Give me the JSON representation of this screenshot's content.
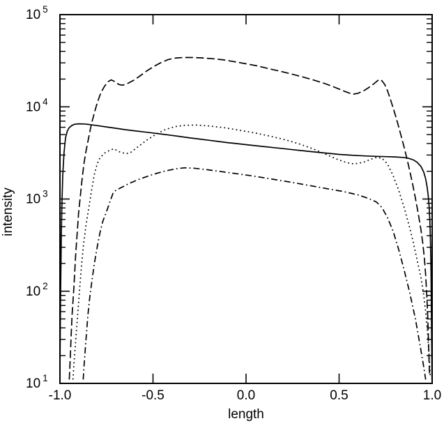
{
  "chart_data": {
    "type": "line",
    "title": "",
    "xlabel": "length",
    "ylabel": "intensity",
    "xlim": [
      -1.0,
      1.0
    ],
    "ylim": [
      10,
      100000
    ],
    "yscale": "log",
    "grid": false,
    "legend": "none",
    "background_color": "#ffffff",
    "axis_color": "#000000",
    "x_ticks": [
      {
        "value": -1.0,
        "label": "-1.0"
      },
      {
        "value": -0.5,
        "label": "-0.5"
      },
      {
        "value": 0.0,
        "label": "0.0"
      },
      {
        "value": 0.5,
        "label": "0.5"
      },
      {
        "value": 1.0,
        "label": "1.0"
      }
    ],
    "y_ticks": [
      {
        "exponent": 1,
        "label_base": "10",
        "label_exp": "1"
      },
      {
        "exponent": 2,
        "label_base": "10",
        "label_exp": "2"
      },
      {
        "exponent": 3,
        "label_base": "10",
        "label_exp": "3"
      },
      {
        "exponent": 4,
        "label_base": "10",
        "label_exp": "4"
      },
      {
        "exponent": 5,
        "label_base": "10",
        "label_exp": "5"
      }
    ],
    "y_minor_mantissas": [
      2,
      3,
      4,
      5,
      6,
      7,
      8,
      9
    ],
    "series": [
      {
        "name": "solid-line",
        "style": "solid",
        "color": "#000000",
        "points": [
          [
            -1.0,
            12
          ],
          [
            -0.998,
            40
          ],
          [
            -0.996,
            120
          ],
          [
            -0.993,
            350
          ],
          [
            -0.99,
            800
          ],
          [
            -0.985,
            1800
          ],
          [
            -0.978,
            3200
          ],
          [
            -0.97,
            4600
          ],
          [
            -0.96,
            5500
          ],
          [
            -0.95,
            5950
          ],
          [
            -0.935,
            6300
          ],
          [
            -0.92,
            6480
          ],
          [
            -0.9,
            6550
          ],
          [
            -0.87,
            6520
          ],
          [
            -0.84,
            6420
          ],
          [
            -0.8,
            6250
          ],
          [
            -0.75,
            6050
          ],
          [
            -0.7,
            5850
          ],
          [
            -0.65,
            5650
          ],
          [
            -0.6,
            5500
          ],
          [
            -0.55,
            5350
          ],
          [
            -0.5,
            5200
          ],
          [
            -0.45,
            5050
          ],
          [
            -0.4,
            4900
          ],
          [
            -0.35,
            4750
          ],
          [
            -0.3,
            4600
          ],
          [
            -0.25,
            4470
          ],
          [
            -0.2,
            4340
          ],
          [
            -0.15,
            4210
          ],
          [
            -0.1,
            4090
          ],
          [
            -0.05,
            3990
          ],
          [
            0.0,
            3890
          ],
          [
            0.05,
            3790
          ],
          [
            0.1,
            3700
          ],
          [
            0.15,
            3610
          ],
          [
            0.2,
            3520
          ],
          [
            0.25,
            3430
          ],
          [
            0.3,
            3350
          ],
          [
            0.35,
            3270
          ],
          [
            0.4,
            3190
          ],
          [
            0.45,
            3120
          ],
          [
            0.5,
            3050
          ],
          [
            0.55,
            3000
          ],
          [
            0.6,
            2960
          ],
          [
            0.65,
            2930
          ],
          [
            0.7,
            2900
          ],
          [
            0.75,
            2880
          ],
          [
            0.8,
            2860
          ],
          [
            0.84,
            2830
          ],
          [
            0.87,
            2780
          ],
          [
            0.9,
            2650
          ],
          [
            0.92,
            2500
          ],
          [
            0.94,
            2250
          ],
          [
            0.955,
            1950
          ],
          [
            0.965,
            1650
          ],
          [
            0.973,
            1350
          ],
          [
            0.979,
            1080
          ],
          [
            0.984,
            820
          ],
          [
            0.988,
            560
          ],
          [
            0.991,
            340
          ],
          [
            0.994,
            160
          ],
          [
            0.996,
            60
          ],
          [
            0.998,
            20
          ],
          [
            0.999,
            11
          ]
        ]
      },
      {
        "name": "long-dashed-line",
        "style": "dashed",
        "color": "#000000",
        "points": [
          [
            -0.95,
            11
          ],
          [
            -0.945,
            18
          ],
          [
            -0.94,
            32
          ],
          [
            -0.935,
            55
          ],
          [
            -0.925,
            110
          ],
          [
            -0.915,
            260
          ],
          [
            -0.905,
            500
          ],
          [
            -0.9,
            700
          ],
          [
            -0.89,
            1100
          ],
          [
            -0.88,
            1700
          ],
          [
            -0.87,
            2500
          ],
          [
            -0.86,
            3300
          ],
          [
            -0.85,
            4200
          ],
          [
            -0.84,
            5300
          ],
          [
            -0.83,
            6600
          ],
          [
            -0.815,
            8600
          ],
          [
            -0.8,
            11000
          ],
          [
            -0.78,
            14200
          ],
          [
            -0.76,
            16800
          ],
          [
            -0.74,
            18800
          ],
          [
            -0.725,
            19600
          ],
          [
            -0.71,
            19000
          ],
          [
            -0.695,
            18000
          ],
          [
            -0.68,
            17400
          ],
          [
            -0.665,
            17200
          ],
          [
            -0.65,
            17400
          ],
          [
            -0.63,
            18200
          ],
          [
            -0.6,
            19600
          ],
          [
            -0.565,
            22000
          ],
          [
            -0.53,
            24800
          ],
          [
            -0.49,
            27800
          ],
          [
            -0.46,
            30000
          ],
          [
            -0.42,
            32500
          ],
          [
            -0.38,
            33800
          ],
          [
            -0.34,
            34300
          ],
          [
            -0.29,
            34300
          ],
          [
            -0.24,
            34000
          ],
          [
            -0.18,
            33300
          ],
          [
            -0.12,
            32300
          ],
          [
            -0.06,
            30800
          ],
          [
            0.0,
            29300
          ],
          [
            0.06,
            27800
          ],
          [
            0.12,
            26000
          ],
          [
            0.18,
            24400
          ],
          [
            0.24,
            22800
          ],
          [
            0.3,
            21200
          ],
          [
            0.36,
            19600
          ],
          [
            0.42,
            18000
          ],
          [
            0.47,
            16500
          ],
          [
            0.52,
            15000
          ],
          [
            0.55,
            14200
          ],
          [
            0.575,
            13700
          ],
          [
            0.6,
            14000
          ],
          [
            0.63,
            14800
          ],
          [
            0.66,
            16200
          ],
          [
            0.69,
            18000
          ],
          [
            0.715,
            19800
          ],
          [
            0.73,
            19200
          ],
          [
            0.745,
            17500
          ],
          [
            0.76,
            15000
          ],
          [
            0.775,
            12200
          ],
          [
            0.79,
            9800
          ],
          [
            0.805,
            7800
          ],
          [
            0.82,
            6100
          ],
          [
            0.835,
            4700
          ],
          [
            0.85,
            3600
          ],
          [
            0.865,
            2700
          ],
          [
            0.88,
            2000
          ],
          [
            0.895,
            1450
          ],
          [
            0.91,
            1020
          ],
          [
            0.925,
            700
          ],
          [
            0.94,
            460
          ],
          [
            0.95,
            330
          ],
          [
            0.958,
            230
          ],
          [
            0.965,
            150
          ],
          [
            0.971,
            90
          ],
          [
            0.976,
            55
          ],
          [
            0.98,
            30
          ],
          [
            0.984,
            16
          ],
          [
            0.986,
            12
          ]
        ]
      },
      {
        "name": "dotted-line",
        "style": "dotted",
        "color": "#000000",
        "points": [
          [
            -0.93,
            11
          ],
          [
            -0.925,
            16
          ],
          [
            -0.915,
            30
          ],
          [
            -0.905,
            55
          ],
          [
            -0.895,
            100
          ],
          [
            -0.885,
            180
          ],
          [
            -0.875,
            300
          ],
          [
            -0.86,
            520
          ],
          [
            -0.845,
            800
          ],
          [
            -0.83,
            1250
          ],
          [
            -0.815,
            1850
          ],
          [
            -0.8,
            2400
          ],
          [
            -0.785,
            2800
          ],
          [
            -0.76,
            3150
          ],
          [
            -0.73,
            3400
          ],
          [
            -0.71,
            3500
          ],
          [
            -0.68,
            3250
          ],
          [
            -0.645,
            3100
          ],
          [
            -0.62,
            3200
          ],
          [
            -0.58,
            3700
          ],
          [
            -0.53,
            4400
          ],
          [
            -0.48,
            5100
          ],
          [
            -0.43,
            5700
          ],
          [
            -0.38,
            6100
          ],
          [
            -0.33,
            6300
          ],
          [
            -0.27,
            6350
          ],
          [
            -0.2,
            6200
          ],
          [
            -0.12,
            5950
          ],
          [
            -0.04,
            5600
          ],
          [
            0.04,
            5250
          ],
          [
            0.12,
            4850
          ],
          [
            0.2,
            4450
          ],
          [
            0.28,
            4000
          ],
          [
            0.36,
            3500
          ],
          [
            0.43,
            3050
          ],
          [
            0.49,
            2700
          ],
          [
            0.54,
            2480
          ],
          [
            0.58,
            2400
          ],
          [
            0.63,
            2500
          ],
          [
            0.67,
            2700
          ],
          [
            0.7,
            2820
          ],
          [
            0.73,
            2780
          ],
          [
            0.76,
            2400
          ],
          [
            0.79,
            1800
          ],
          [
            0.82,
            1250
          ],
          [
            0.85,
            800
          ],
          [
            0.88,
            480
          ],
          [
            0.9,
            330
          ],
          [
            0.92,
            215
          ],
          [
            0.94,
            140
          ],
          [
            0.955,
            90
          ],
          [
            0.967,
            55
          ],
          [
            0.977,
            32
          ],
          [
            0.985,
            18
          ],
          [
            0.99,
            12
          ]
        ]
      },
      {
        "name": "dash-dot-line",
        "style": "dashdot",
        "color": "#000000",
        "points": [
          [
            -0.875,
            11
          ],
          [
            -0.87,
            16
          ],
          [
            -0.86,
            30
          ],
          [
            -0.85,
            55
          ],
          [
            -0.84,
            85
          ],
          [
            -0.828,
            130
          ],
          [
            -0.815,
            200
          ],
          [
            -0.8,
            300
          ],
          [
            -0.785,
            430
          ],
          [
            -0.77,
            570
          ],
          [
            -0.75,
            730
          ],
          [
            -0.73,
            950
          ],
          [
            -0.715,
            1150
          ],
          [
            -0.7,
            1240
          ],
          [
            -0.68,
            1300
          ],
          [
            -0.63,
            1470
          ],
          [
            -0.57,
            1650
          ],
          [
            -0.5,
            1850
          ],
          [
            -0.44,
            2000
          ],
          [
            -0.38,
            2120
          ],
          [
            -0.33,
            2180
          ],
          [
            -0.28,
            2160
          ],
          [
            -0.21,
            2080
          ],
          [
            -0.13,
            1980
          ],
          [
            -0.05,
            1880
          ],
          [
            0.05,
            1760
          ],
          [
            0.15,
            1630
          ],
          [
            0.25,
            1510
          ],
          [
            0.35,
            1390
          ],
          [
            0.44,
            1290
          ],
          [
            0.52,
            1210
          ],
          [
            0.6,
            1110
          ],
          [
            0.66,
            1010
          ],
          [
            0.7,
            930
          ],
          [
            0.73,
            810
          ],
          [
            0.76,
            630
          ],
          [
            0.79,
            450
          ],
          [
            0.82,
            285
          ],
          [
            0.85,
            168
          ],
          [
            0.88,
            95
          ],
          [
            0.91,
            50
          ],
          [
            0.935,
            26
          ],
          [
            0.955,
            15
          ],
          [
            0.965,
            11
          ]
        ]
      }
    ]
  }
}
